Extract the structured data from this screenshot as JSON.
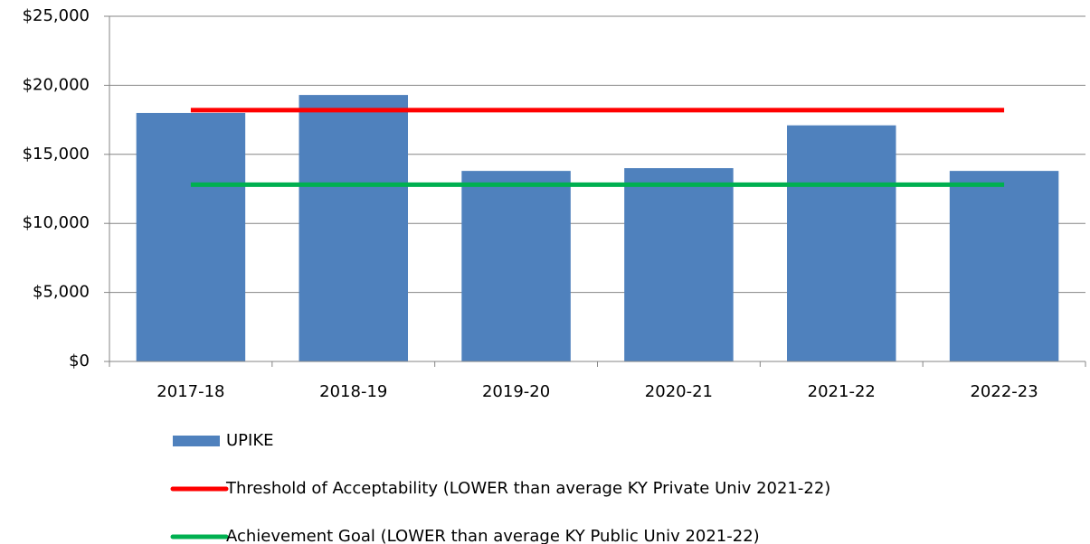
{
  "chart_data": {
    "type": "bar",
    "categories": [
      "2017-18",
      "2018-19",
      "2019-20",
      "2020-21",
      "2021-22",
      "2022-23"
    ],
    "series": [
      {
        "name": "UPIKE",
        "type": "bar",
        "color": "#4f81bd",
        "values": [
          18000,
          19300,
          13800,
          14000,
          17100,
          13800
        ]
      },
      {
        "name": "Threshold of Acceptability (LOWER than average KY Private Univ 2021-22)",
        "type": "line",
        "color": "#ff0000",
        "values": [
          18200,
          18200,
          18200,
          18200,
          18200,
          18200
        ]
      },
      {
        "name": "Achievement Goal (LOWER than average KY Public Univ 2021-22)",
        "type": "line",
        "color": "#00b050",
        "values": [
          12800,
          12800,
          12800,
          12800,
          12800,
          12800
        ]
      }
    ],
    "ylim": [
      0,
      25000
    ],
    "yticks": [
      {
        "value": 0,
        "label": "$0"
      },
      {
        "value": 5000,
        "label": "$5,000"
      },
      {
        "value": 10000,
        "label": "$10,000"
      },
      {
        "value": 15000,
        "label": "$15,000"
      },
      {
        "value": 20000,
        "label": "$20,000"
      },
      {
        "value": 25000,
        "label": "$25,000"
      }
    ],
    "grid": true
  }
}
